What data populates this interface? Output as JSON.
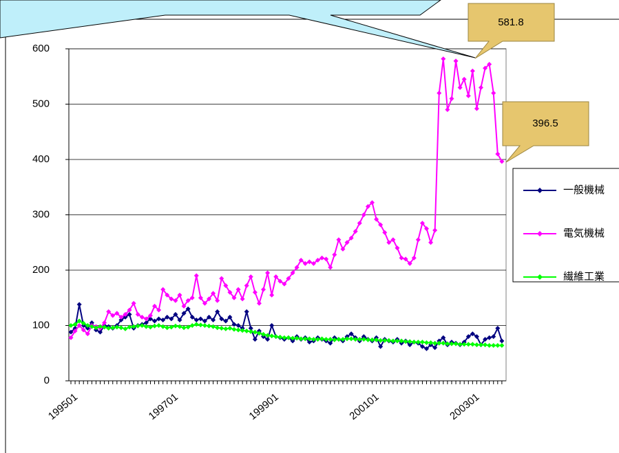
{
  "chart_data": {
    "type": "line",
    "categories": [
      "199501",
      null,
      null,
      null,
      null,
      null,
      null,
      null,
      null,
      null,
      null,
      null,
      null,
      null,
      null,
      null,
      null,
      null,
      null,
      null,
      null,
      null,
      null,
      null,
      "199701",
      null,
      null,
      null,
      null,
      null,
      null,
      null,
      null,
      null,
      null,
      null,
      null,
      null,
      null,
      null,
      null,
      null,
      null,
      null,
      null,
      null,
      null,
      null,
      "199901",
      null,
      null,
      null,
      null,
      null,
      null,
      null,
      null,
      null,
      null,
      null,
      null,
      null,
      null,
      null,
      null,
      null,
      null,
      null,
      null,
      null,
      null,
      null,
      "200101",
      null,
      null,
      null,
      null,
      null,
      null,
      null,
      null,
      null,
      null,
      null,
      null,
      null,
      null,
      null,
      null,
      null,
      null,
      null,
      null,
      null,
      null,
      null,
      "200301",
      null,
      null,
      null,
      null,
      null,
      null,
      null
    ],
    "series": [
      {
        "name": "一般機械",
        "color": "#000080",
        "values": [
          88,
          95,
          138,
          100,
          95,
          105,
          92,
          88,
          100,
          98,
          95,
          100,
          110,
          115,
          120,
          95,
          100,
          102,
          105,
          112,
          108,
          112,
          110,
          115,
          112,
          120,
          110,
          122,
          130,
          115,
          110,
          112,
          108,
          115,
          110,
          125,
          112,
          108,
          115,
          102,
          100,
          95,
          125,
          95,
          75,
          90,
          80,
          75,
          100,
          80,
          78,
          75,
          78,
          72,
          80,
          75,
          78,
          70,
          72,
          78,
          75,
          72,
          68,
          78,
          75,
          72,
          80,
          85,
          78,
          72,
          80,
          75,
          72,
          78,
          62,
          75,
          72,
          70,
          75,
          68,
          72,
          65,
          70,
          68,
          62,
          58,
          65,
          60,
          72,
          78,
          65,
          70,
          68,
          65,
          70,
          80,
          85,
          80,
          65,
          75,
          78,
          80,
          95,
          72
        ]
      },
      {
        "name": "電気機械",
        "color": "#ff00ff",
        "values": [
          78,
          90,
          100,
          92,
          85,
          100,
          98,
          95,
          105,
          125,
          118,
          122,
          115,
          120,
          128,
          140,
          120,
          115,
          112,
          118,
          135,
          128,
          165,
          155,
          148,
          145,
          155,
          135,
          145,
          150,
          190,
          150,
          140,
          148,
          158,
          145,
          185,
          172,
          160,
          150,
          165,
          148,
          172,
          188,
          160,
          140,
          165,
          195,
          155,
          188,
          180,
          175,
          185,
          195,
          205,
          218,
          212,
          215,
          212,
          218,
          222,
          220,
          205,
          228,
          255,
          238,
          250,
          258,
          270,
          285,
          300,
          315,
          322,
          292,
          282,
          268,
          250,
          255,
          240,
          222,
          220,
          212,
          222,
          255,
          285,
          275,
          250,
          272,
          520,
          581.8,
          490,
          510,
          578,
          530,
          545,
          515,
          560,
          492,
          530,
          565,
          572,
          520,
          410,
          396.5
        ]
      },
      {
        "name": "繊維工業",
        "color": "#00ff00",
        "values": [
          100,
          102,
          108,
          104,
          100,
          98,
          96,
          98,
          97,
          95,
          96,
          97,
          96,
          94,
          97,
          98,
          99,
          100,
          98,
          97,
          99,
          100,
          98,
          96,
          97,
          99,
          98,
          96,
          97,
          100,
          102,
          101,
          100,
          99,
          98,
          96,
          95,
          94,
          95,
          93,
          92,
          91,
          90,
          89,
          88,
          86,
          84,
          82,
          81,
          80,
          79,
          78,
          78,
          77,
          77,
          76,
          76,
          76,
          75,
          75,
          76,
          75,
          75,
          74,
          75,
          75,
          76,
          76,
          75,
          75,
          75,
          74,
          74,
          74,
          73,
          73,
          73,
          72,
          72,
          72,
          71,
          71,
          70,
          70,
          70,
          69,
          69,
          68,
          68,
          68,
          67,
          67,
          67,
          66,
          66,
          66,
          66,
          65,
          65,
          65,
          64,
          64,
          64,
          64
        ]
      }
    ],
    "ylim": [
      0,
      600
    ],
    "yticks": [
      0,
      100,
      200,
      300,
      400,
      500,
      600
    ],
    "grid": true,
    "legend": "right"
  }
}
